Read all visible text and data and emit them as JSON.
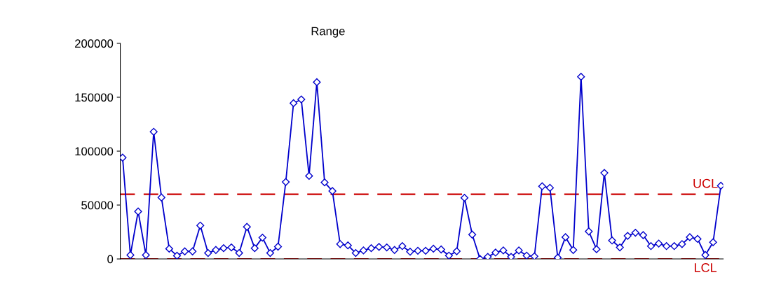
{
  "chart_data": {
    "type": "line",
    "title": "Range",
    "categories": [
      null,
      null,
      null,
      null,
      null,
      null,
      null,
      null,
      null,
      null,
      null,
      null,
      null,
      null,
      null,
      null,
      null,
      null,
      null,
      null,
      null,
      null,
      null,
      null,
      null,
      null,
      null,
      null,
      null,
      null,
      null,
      null,
      null,
      null,
      null,
      null,
      null,
      null,
      null,
      null,
      null,
      null,
      null,
      null,
      null,
      null,
      null,
      null,
      null,
      null,
      null,
      null,
      null,
      null,
      null,
      null,
      null,
      null,
      null,
      null,
      null,
      null,
      null,
      null,
      null,
      null,
      null,
      null,
      null,
      null,
      null,
      null,
      null,
      null,
      null,
      null,
      null,
      null
    ],
    "series": [
      {
        "color": "#0000cc",
        "values": [
          94000,
          3600,
          44000,
          3600,
          118000,
          57000,
          9500,
          3000,
          7000,
          7000,
          31000,
          5500,
          8300,
          10000,
          10700,
          5500,
          29800,
          10000,
          19800,
          5500,
          11400,
          71400,
          144500,
          148000,
          77000,
          164000,
          71000,
          63000,
          13800,
          12600,
          5500,
          7900,
          10000,
          11200,
          10700,
          8300,
          11900,
          6700,
          7600,
          7600,
          9500,
          8800,
          3100,
          7100,
          56700,
          22600,
          0,
          1900,
          5900,
          7900,
          1900,
          7900,
          3100,
          2400,
          67400,
          66000,
          1200,
          20200,
          8300,
          169000,
          25500,
          9000,
          79800,
          17100,
          10700,
          21400,
          24300,
          22100,
          11900,
          14300,
          11900,
          11900,
          13800,
          20200,
          18600,
          3600,
          15500,
          67900
        ]
      }
    ],
    "ylim": [
      0,
      200000
    ],
    "yticks": [
      0,
      50000,
      100000,
      150000,
      200000
    ],
    "marker": "diamond",
    "line_style": "solid",
    "grid": false,
    "tick_labels": "y",
    "ref_lines": [
      {
        "axis": "y",
        "value": 60000,
        "label": "UCL",
        "color": "#cc0000",
        "line_style": "dashed"
      },
      {
        "axis": "y",
        "value": 0,
        "label": "LCL",
        "color": "#cc0000",
        "line_style": "dashed"
      }
    ]
  }
}
